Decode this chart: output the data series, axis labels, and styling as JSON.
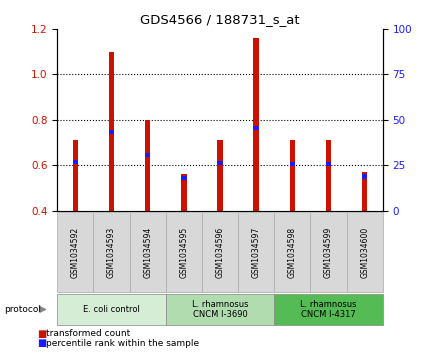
{
  "title": "GDS4566 / 188731_s_at",
  "samples": [
    "GSM1034592",
    "GSM1034593",
    "GSM1034594",
    "GSM1034595",
    "GSM1034596",
    "GSM1034597",
    "GSM1034598",
    "GSM1034599",
    "GSM1034600"
  ],
  "transformed_counts": [
    0.71,
    1.1,
    0.8,
    0.56,
    0.71,
    1.16,
    0.71,
    0.71,
    0.57
  ],
  "percentile_ranks": [
    0.615,
    0.745,
    0.645,
    0.545,
    0.61,
    0.765,
    0.605,
    0.605,
    0.55
  ],
  "bar_bottom": 0.4,
  "ylim_left": [
    0.4,
    1.2
  ],
  "ylim_right": [
    0,
    100
  ],
  "yticks_left": [
    0.4,
    0.6,
    0.8,
    1.0,
    1.2
  ],
  "yticks_right": [
    0,
    25,
    50,
    75,
    100
  ],
  "red_color": "#cc1100",
  "blue_color": "#1a1aff",
  "groups": [
    {
      "label": "E. coli control",
      "indices": [
        0,
        1,
        2
      ],
      "color": "#d5ecd5"
    },
    {
      "label": "L. rhamnosus\nCNCM I-3690",
      "indices": [
        3,
        4,
        5
      ],
      "color": "#b0dcb0"
    },
    {
      "label": "L. rhamnosus\nCNCM I-4317",
      "indices": [
        6,
        7,
        8
      ],
      "color": "#55bb55"
    }
  ],
  "legend_items": [
    {
      "label": "transformed count",
      "color": "#cc1100"
    },
    {
      "label": "percentile rank within the sample",
      "color": "#1a1aff"
    }
  ],
  "bar_width": 0.15,
  "tick_label_color_left": "#cc1100",
  "tick_label_color_right": "#1a1aff",
  "bg_color": "#ffffff",
  "sample_box_color": "#d8d8d8",
  "sample_box_edge": "#aaaaaa"
}
